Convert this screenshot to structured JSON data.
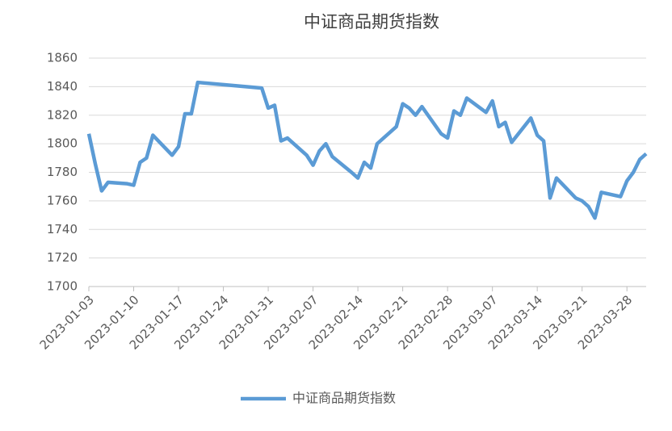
{
  "chart_data": {
    "type": "line",
    "title": "中证商品期货指数",
    "x": [
      "2023-01-03",
      "2023-01-04",
      "2023-01-05",
      "2023-01-06",
      "2023-01-09",
      "2023-01-10",
      "2023-01-11",
      "2023-01-12",
      "2023-01-13",
      "2023-01-16",
      "2023-01-17",
      "2023-01-18",
      "2023-01-19",
      "2023-01-20",
      "2023-01-30",
      "2023-01-31",
      "2023-02-01",
      "2023-02-02",
      "2023-02-03",
      "2023-02-06",
      "2023-02-07",
      "2023-02-08",
      "2023-02-09",
      "2023-02-10",
      "2023-02-13",
      "2023-02-14",
      "2023-02-15",
      "2023-02-16",
      "2023-02-17",
      "2023-02-20",
      "2023-02-21",
      "2023-02-22",
      "2023-02-23",
      "2023-02-24",
      "2023-02-27",
      "2023-02-28",
      "2023-03-01",
      "2023-03-02",
      "2023-03-03",
      "2023-03-06",
      "2023-03-07",
      "2023-03-08",
      "2023-03-09",
      "2023-03-10",
      "2023-03-13",
      "2023-03-14",
      "2023-03-15",
      "2023-03-16",
      "2023-03-17",
      "2023-03-20",
      "2023-03-21",
      "2023-03-22",
      "2023-03-23",
      "2023-03-24",
      "2023-03-27",
      "2023-03-28",
      "2023-03-29",
      "2023-03-30",
      "2023-03-31"
    ],
    "series": [
      {
        "name": "中证商品期货指数",
        "color": "#5b9bd5",
        "values": [
          1807,
          1786,
          1767,
          1773,
          1772,
          1771,
          1787,
          1790,
          1806,
          1792,
          1798,
          1821,
          1821,
          1843,
          1839,
          1825,
          1827,
          1802,
          1804,
          1792,
          1785,
          1795,
          1800,
          1791,
          1780,
          1776,
          1787,
          1783,
          1800,
          1812,
          1828,
          1825,
          1820,
          1826,
          1807,
          1804,
          1823,
          1820,
          1832,
          1822,
          1830,
          1812,
          1815,
          1801,
          1818,
          1806,
          1802,
          1762,
          1776,
          1762,
          1760,
          1756,
          1748,
          1766,
          1763,
          1774,
          1780,
          1789,
          1793
        ]
      }
    ],
    "xlim": [
      "2023-01-03",
      "2023-03-31"
    ],
    "xticks": [
      "2023-01-03",
      "2023-01-10",
      "2023-01-17",
      "2023-01-24",
      "2023-01-31",
      "2023-02-07",
      "2023-02-14",
      "2023-02-21",
      "2023-02-28",
      "2023-03-07",
      "2023-03-14",
      "2023-03-21",
      "2023-03-28"
    ],
    "ylim": [
      1700,
      1860
    ],
    "yticks": [
      1700,
      1720,
      1740,
      1760,
      1780,
      1800,
      1820,
      1840,
      1860
    ],
    "grid": true,
    "legend": "bottom"
  }
}
